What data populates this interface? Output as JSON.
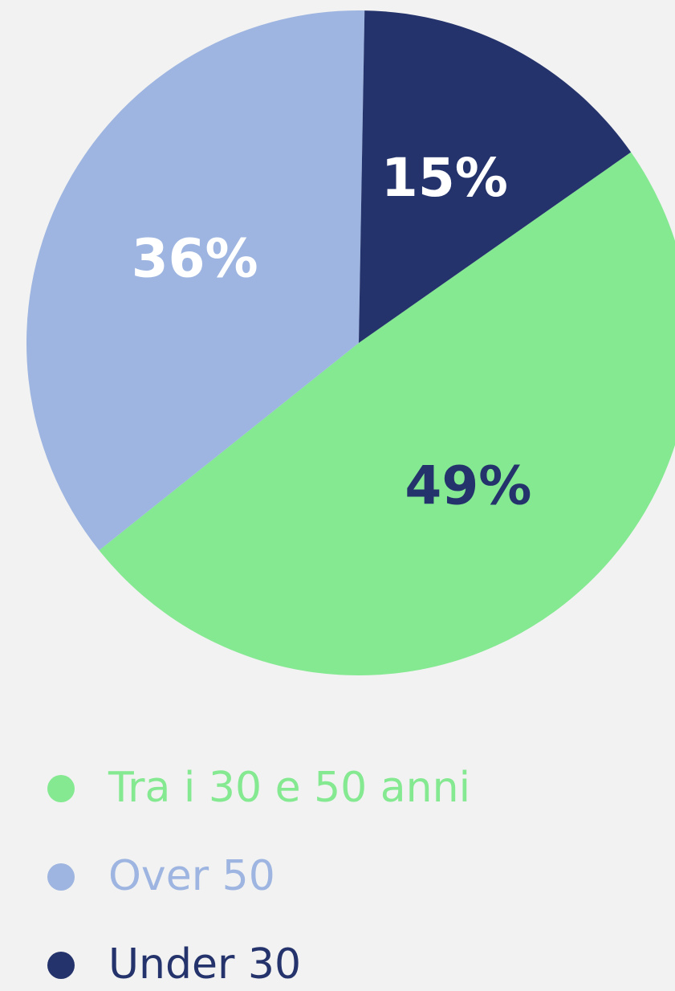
{
  "chart_data": {
    "type": "pie",
    "categories": [
      "Tra i 30 e 50 anni",
      "Over 50",
      "Under 30"
    ],
    "values": [
      49,
      36,
      15
    ],
    "value_labels": [
      "49%",
      "36%",
      "15%"
    ],
    "colors": [
      "#84e991",
      "#9db5e0",
      "#24336b"
    ],
    "label_colors": [
      "#24336b",
      "#ffffff",
      "#ffffff"
    ]
  }
}
